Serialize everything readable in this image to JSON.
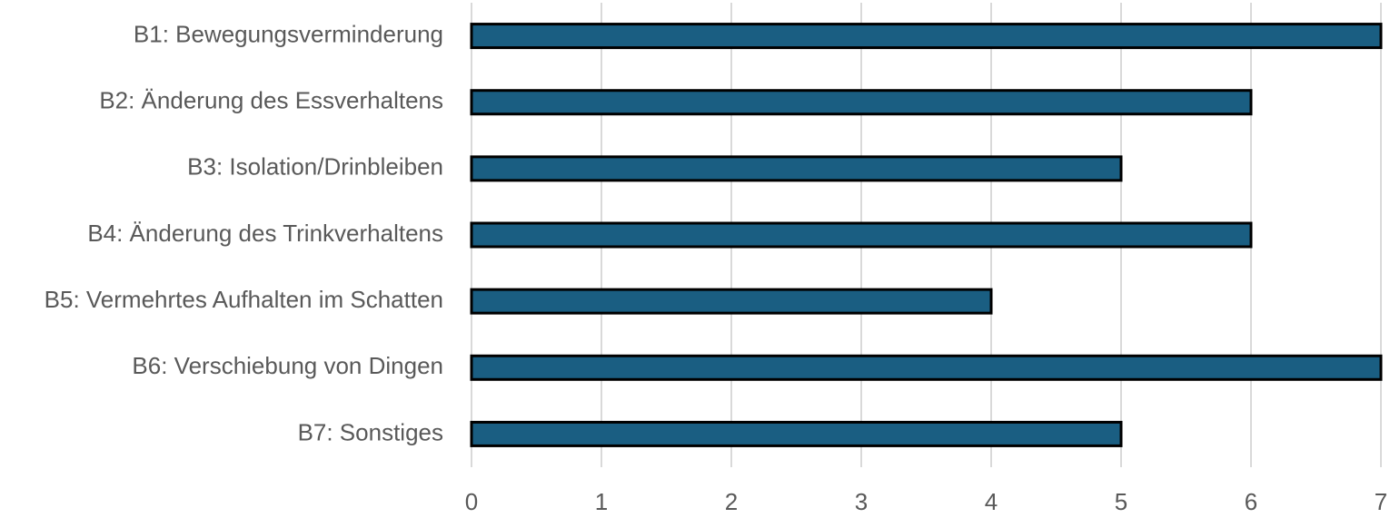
{
  "chart_data": {
    "type": "bar",
    "orientation": "horizontal",
    "categories": [
      "B1: Bewegungsverminderung",
      "B2: Änderung des Essverhaltens",
      "B3: Isolation/Drinbleiben",
      "B4: Änderung des Trinkverhaltens",
      "B5: Vermehrtes Aufhalten im Schatten",
      "B6: Verschiebung von Dingen",
      "B7: Sonstiges"
    ],
    "values": [
      7,
      6,
      5,
      6,
      4,
      7,
      5
    ],
    "color": "#1a5e82",
    "xlim": [
      0,
      7
    ],
    "xticks": [
      0,
      1,
      2,
      3,
      4,
      5,
      6,
      7
    ],
    "grid": true
  }
}
